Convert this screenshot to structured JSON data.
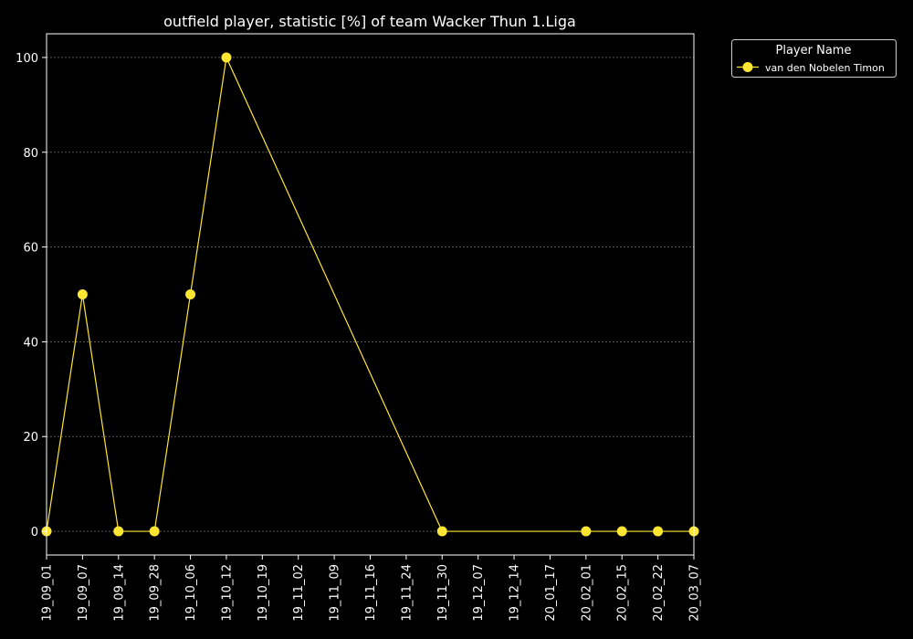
{
  "chart_data": {
    "type": "line",
    "title": "outfield player, statistic [%] of team Wacker Thun 1.Liga",
    "xlabel": "",
    "ylabel": "",
    "categories": [
      "19_09_01",
      "19_09_07",
      "19_09_14",
      "19_09_28",
      "19_10_06",
      "19_10_12",
      "19_10_19",
      "19_11_02",
      "19_11_09",
      "19_11_16",
      "19_11_24",
      "19_11_30",
      "19_12_07",
      "19_12_14",
      "20_01_17",
      "20_02_01",
      "20_02_15",
      "20_02_22",
      "20_03_07"
    ],
    "yticks": [
      0,
      20,
      40,
      60,
      80,
      100
    ],
    "ylim": [
      -5,
      105
    ],
    "grid": true,
    "legend": {
      "title": "Player Name",
      "placement": "outside-top-right"
    },
    "series": [
      {
        "name": "van den Nobelen Timon",
        "color": "#ffe633",
        "values": [
          0,
          50,
          0,
          0,
          50,
          100,
          null,
          null,
          null,
          null,
          null,
          0,
          null,
          null,
          null,
          0,
          0,
          0,
          0
        ]
      }
    ]
  }
}
